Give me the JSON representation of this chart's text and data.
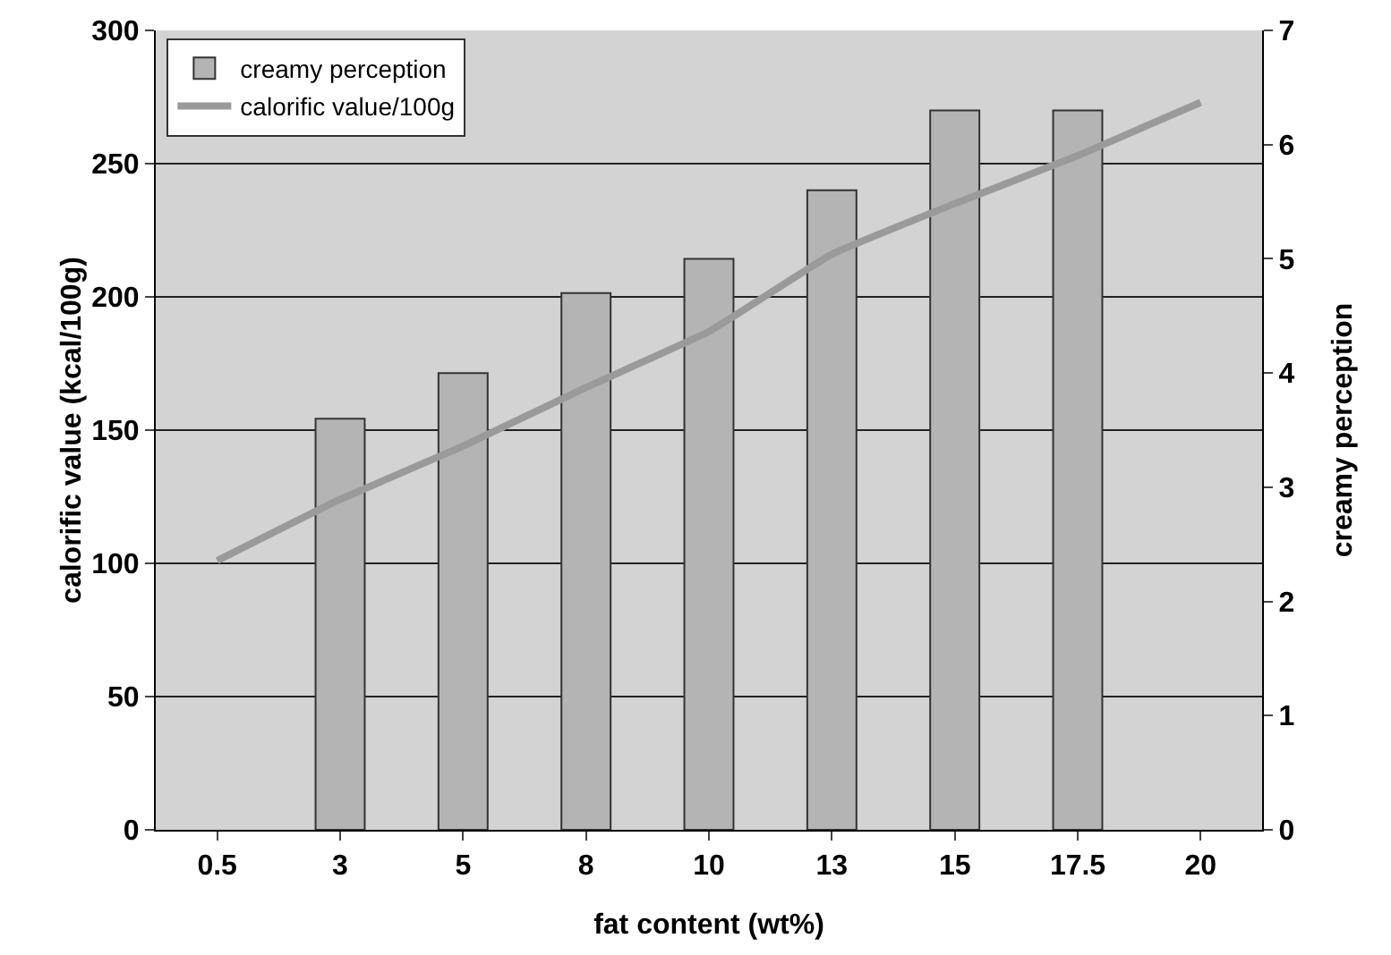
{
  "chart_data": {
    "type": "bar",
    "xlabel": "fat content (wt%)",
    "ylabel": "calorific value (kcal/100g)",
    "y2label": "creamy perception",
    "categories": [
      "0.5",
      "3",
      "5",
      "8",
      "10",
      "13",
      "15",
      "17.5",
      "20"
    ],
    "series": [
      {
        "name": "creamy perception",
        "axis": "y2",
        "color": "#b4b4b4",
        "values": [
          null,
          3.6,
          4.0,
          4.7,
          5.0,
          5.6,
          6.3,
          6.3,
          null
        ]
      },
      {
        "name": "calorific value/100g",
        "type": "line",
        "color": "#9a9a9a",
        "values": [
          101,
          124,
          144,
          166,
          187,
          216,
          235,
          253,
          273
        ]
      }
    ],
    "ylim": [
      0,
      300
    ],
    "yticks": [
      0,
      50,
      100,
      150,
      200,
      250,
      300
    ],
    "y2lim": [
      0,
      7
    ],
    "y2ticks": [
      0,
      1,
      2,
      3,
      4,
      5,
      6,
      7
    ],
    "grid": "y",
    "legend": "top left",
    "line_style": "solid",
    "marker": "none"
  }
}
